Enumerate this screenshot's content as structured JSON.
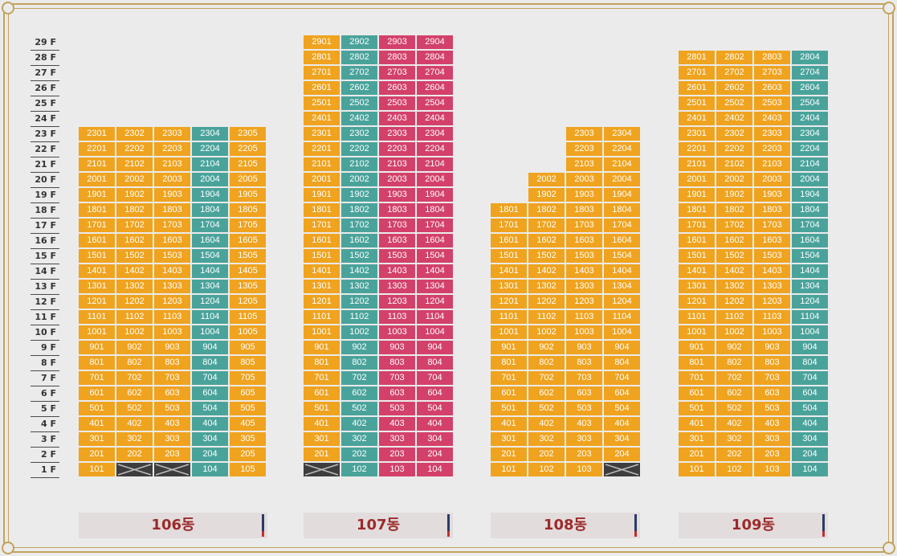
{
  "floors": [
    "29 F",
    "28 F",
    "27 F",
    "26 F",
    "25 F",
    "24 F",
    "23 F",
    "22 F",
    "21 F",
    "20 F",
    "19 F",
    "18 F",
    "17 F",
    "16 F",
    "15 F",
    "14 F",
    "13 F",
    "12 F",
    "11 F",
    "10 F",
    "9 F",
    "8 F",
    "7 F",
    "6 F",
    "5 F",
    "4 F",
    "3 F",
    "2 F",
    "1 F"
  ],
  "colors": {
    "orange": "#f0a31f",
    "teal": "#4aa39b",
    "pink": "#d3416a",
    "blocked": "#3d3d3d",
    "label_text": "#9c2a2a",
    "frame": "#c2a35d"
  },
  "buildings": [
    {
      "name": "106동",
      "columns": [
        {
          "line": "01",
          "color": "orange",
          "top": 23,
          "blocked": []
        },
        {
          "line": "02",
          "color": "orange",
          "top": 23,
          "blocked": [
            1
          ]
        },
        {
          "line": "03",
          "color": "orange",
          "top": 23,
          "blocked": [
            1
          ]
        },
        {
          "line": "04",
          "color": "teal",
          "top": 23,
          "blocked": []
        },
        {
          "line": "05",
          "color": "orange",
          "top": 23,
          "blocked": []
        }
      ]
    },
    {
      "name": "107동",
      "columns": [
        {
          "line": "01",
          "color": "orange",
          "top": 29,
          "blocked": [
            1
          ]
        },
        {
          "line": "02",
          "color": "teal",
          "top": 29,
          "blocked": []
        },
        {
          "line": "03",
          "color": "pink",
          "top": 29,
          "blocked": []
        },
        {
          "line": "04",
          "color": "pink",
          "top": 29,
          "blocked": []
        }
      ]
    },
    {
      "name": "108동",
      "columns": [
        {
          "line": "01",
          "color": "orange",
          "top": 18,
          "blocked": []
        },
        {
          "line": "02",
          "color": "orange",
          "top": 20,
          "blocked": []
        },
        {
          "line": "03",
          "color": "orange",
          "top": 23,
          "blocked": []
        },
        {
          "line": "04",
          "color": "orange",
          "top": 23,
          "blocked": [
            1
          ]
        }
      ]
    },
    {
      "name": "109동",
      "columns": [
        {
          "line": "01",
          "color": "orange",
          "top": 28,
          "blocked": []
        },
        {
          "line": "02",
          "color": "orange",
          "top": 28,
          "blocked": []
        },
        {
          "line": "03",
          "color": "orange",
          "top": 28,
          "blocked": []
        },
        {
          "line": "04",
          "color": "teal",
          "top": 28,
          "blocked": []
        }
      ]
    }
  ]
}
